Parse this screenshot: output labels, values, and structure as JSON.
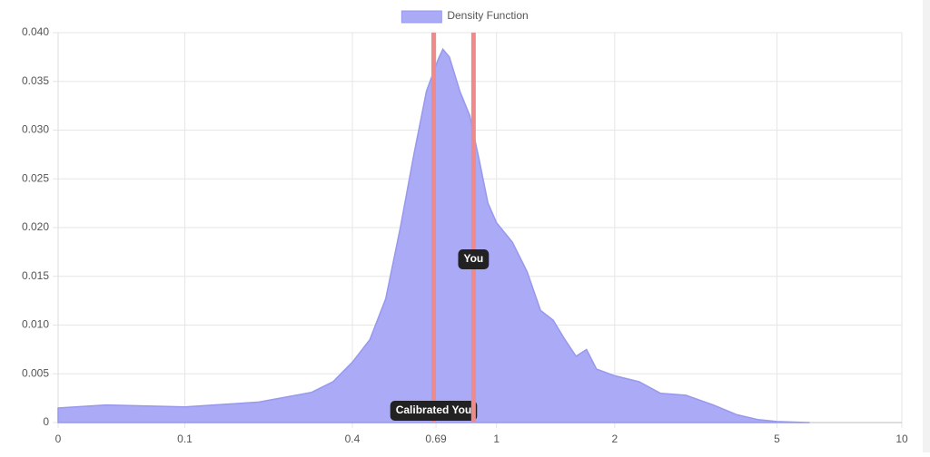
{
  "chart_data": {
    "type": "area",
    "series": [
      {
        "name": "Density Function",
        "color": "#aaaaf6",
        "border_color": "#9898ec"
      }
    ],
    "x": [
      0,
      0.03,
      0.1,
      0.2,
      0.3,
      0.35,
      0.4,
      0.45,
      0.5,
      0.55,
      0.6,
      0.65,
      0.7,
      0.72,
      0.75,
      0.8,
      0.85,
      0.9,
      0.95,
      1.0,
      1.1,
      1.2,
      1.3,
      1.4,
      1.5,
      1.6,
      1.7,
      1.8,
      2.0,
      2.3,
      2.6,
      3.0,
      3.5,
      4.0,
      4.5,
      5.0,
      6.0
    ],
    "values": [
      0.0015,
      0.0018,
      0.0016,
      0.0021,
      0.0031,
      0.0042,
      0.0062,
      0.0085,
      0.0127,
      0.02,
      0.0275,
      0.034,
      0.0373,
      0.0383,
      0.0375,
      0.034,
      0.0315,
      0.027,
      0.0225,
      0.0205,
      0.0185,
      0.0155,
      0.0115,
      0.0105,
      0.0085,
      0.0068,
      0.0075,
      0.0055,
      0.0048,
      0.0042,
      0.003,
      0.0028,
      0.0018,
      0.0008,
      0.0003,
      0.0001,
      0
    ],
    "xscale": "log",
    "xlog_offset": 0.1,
    "xlim": [
      0,
      10
    ],
    "xticks": [
      0,
      0.1,
      0.4,
      0.69,
      1,
      2,
      5,
      10
    ],
    "ylim": [
      0,
      0.04
    ],
    "yticks": [
      0,
      0.005,
      {
        "value": 0.01,
        "label": "0.010"
      },
      0.015,
      {
        "value": 0.02,
        "label": "0.020"
      },
      0.025,
      {
        "value": 0.03,
        "label": "0.030"
      },
      0.035,
      {
        "value": 0.04,
        "label": "0.040"
      }
    ],
    "grid": true,
    "legend": "top",
    "annotations": [
      {
        "label": "Calibrated You",
        "x": 0.68,
        "color": "#f08a8a"
      },
      {
        "label": "You",
        "x": 0.87,
        "color": "#f08a8a"
      }
    ]
  }
}
